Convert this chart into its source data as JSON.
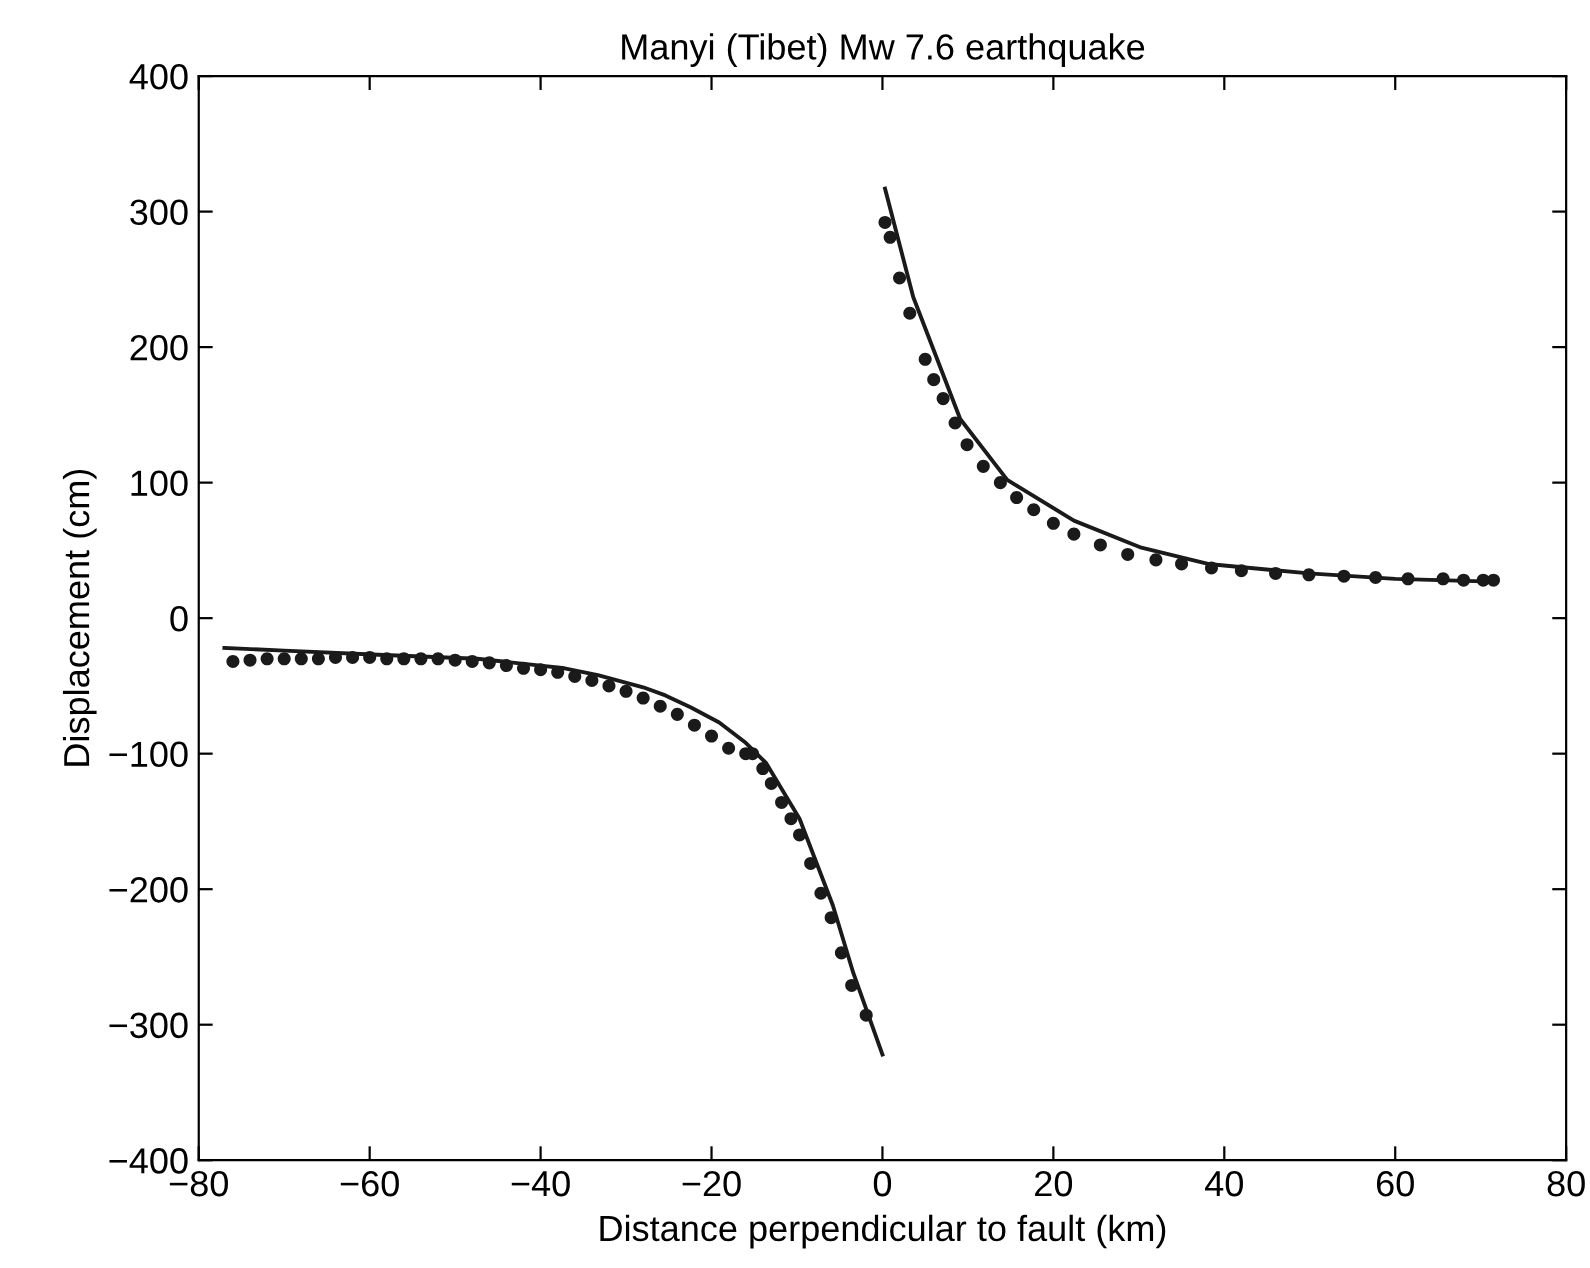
{
  "chart_data": {
    "type": "scatter",
    "title": "Manyi (Tibet) Mw 7.6 earthquake",
    "xlabel": "Distance perpendicular to fault (km)",
    "ylabel": "Displacement (cm)",
    "xlim": [
      -80,
      80
    ],
    "ylim": [
      -400,
      400
    ],
    "xticks": [
      {
        "value": -80,
        "label": "−80"
      },
      {
        "value": -60,
        "label": "−60"
      },
      {
        "value": -40,
        "label": "−40"
      },
      {
        "value": -20,
        "label": "−20"
      },
      0,
      20,
      40,
      60,
      80
    ],
    "yticks": [
      {
        "value": -400,
        "label": "−400"
      },
      {
        "value": -300,
        "label": "−300"
      },
      {
        "value": -200,
        "label": "−200"
      },
      {
        "value": -100,
        "label": "−100"
      },
      0,
      100,
      200,
      300,
      400
    ],
    "grid": false,
    "series": [
      {
        "marker": "circle",
        "color": "#1a1a1a",
        "x": [
          -76,
          -74,
          -72,
          -70,
          -68,
          -66,
          -64,
          -62,
          -60,
          -58,
          -56,
          -54,
          -52,
          -50,
          -48,
          -46,
          -44,
          -42,
          -40,
          -38,
          -36,
          -34,
          -32,
          -30,
          -28,
          -26,
          -24,
          -22,
          -20,
          -18,
          -16,
          -15.2,
          -14.0,
          -13.0,
          -11.8,
          -10.7,
          -9.7,
          -8.4,
          -7.2,
          -6.0,
          -4.8,
          -3.6,
          -1.9
        ],
        "values": [
          -32,
          -31,
          -30,
          -30,
          -30,
          -30,
          -29,
          -29,
          -29,
          -30,
          -30,
          -30,
          -30,
          -31,
          -32,
          -33,
          -35,
          -37,
          -38,
          -40,
          -43,
          -46,
          -50,
          -54,
          -59,
          -65,
          -71,
          -79,
          -87,
          -96,
          -100,
          -100,
          -111,
          -122,
          -136,
          -148,
          -160,
          -181,
          -203,
          -221,
          -247,
          -271,
          -293
        ]
      },
      {
        "type": "line",
        "marker": "none",
        "line_style": "solid",
        "color": "#1a1a1a",
        "x": [
          -77,
          -70,
          -59,
          -47.4,
          -40,
          -37.2,
          -33.3,
          -28,
          -25.4,
          -22.4,
          -19.1,
          -16,
          -13.6,
          -9.7,
          -5.8,
          -3.4,
          0
        ],
        "values": [
          -22,
          -24,
          -27,
          -30,
          -35,
          -37,
          -42,
          -51,
          -57,
          -66,
          -77,
          -92,
          -107,
          -148,
          -212,
          -262,
          -322
        ]
      },
      {
        "marker": "circle",
        "color": "#1a1a1a",
        "x": [
          0.3,
          0.9,
          2.0,
          3.2,
          5.0,
          6.0,
          7.1,
          8.5,
          9.9,
          11.8,
          13.8,
          15.7,
          17.7,
          20,
          22.4,
          25.5,
          28.7,
          32,
          35.0,
          38.5,
          42.0,
          46,
          49.9,
          54,
          57.7,
          61.5,
          65.6,
          68,
          70.3,
          71.5
        ],
        "values": [
          292,
          281,
          251,
          225,
          191,
          176,
          162,
          144,
          128,
          112,
          100,
          89,
          80,
          70,
          62,
          54,
          47,
          43,
          40,
          37,
          35,
          33,
          32,
          31,
          30,
          29,
          29,
          28,
          28,
          28
        ]
      },
      {
        "type": "line",
        "marker": "none",
        "line_style": "solid",
        "color": "#1a1a1a",
        "x": [
          0.3,
          3.6,
          9.1,
          14.6,
          22.4,
          30.3,
          38.1,
          49.9,
          60,
          71.1
        ],
        "values": [
          317,
          237,
          147,
          102,
          72,
          52,
          40,
          33,
          29,
          27
        ]
      }
    ]
  }
}
